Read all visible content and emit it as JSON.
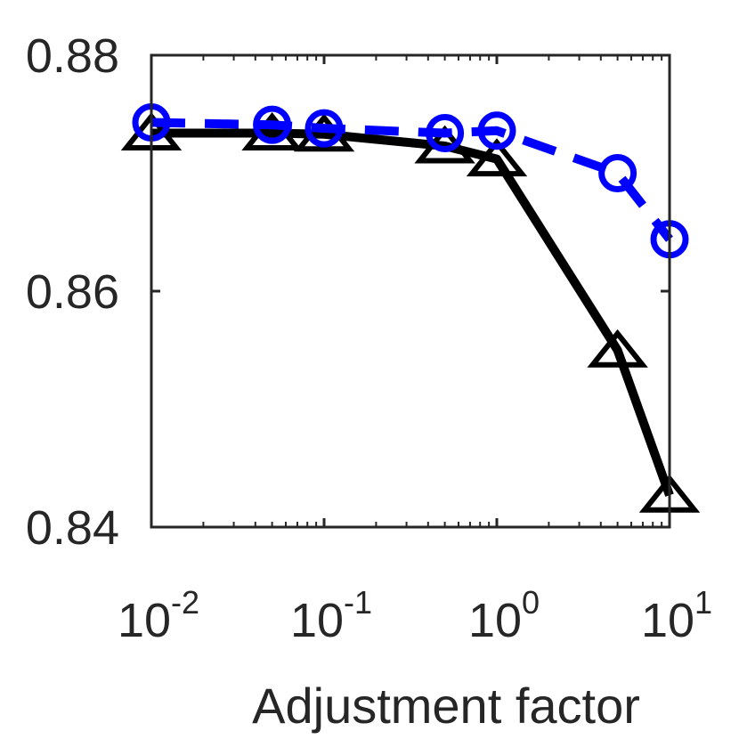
{
  "chart_data": {
    "type": "line",
    "title": "",
    "xlabel": "Adjustment factor",
    "ylabel": "",
    "xscale": "log",
    "xlim": [
      0.01,
      10
    ],
    "ylim": [
      0.84,
      0.88
    ],
    "x_ticks": [
      {
        "base": "10",
        "exp": "-2",
        "value": 0.01
      },
      {
        "base": "10",
        "exp": "-1",
        "value": 0.1
      },
      {
        "base": "10",
        "exp": "0",
        "value": 1
      },
      {
        "base": "10",
        "exp": "1",
        "value": 10
      }
    ],
    "y_ticks": [
      "0.84",
      "0.86",
      "0.88"
    ],
    "grid": false,
    "series": [
      {
        "marker": "triangle",
        "line_style": "solid",
        "color": "#000000",
        "x": [
          0.01,
          0.05,
          0.1,
          0.5,
          1,
          5,
          10
        ],
        "y": [
          0.8734,
          0.8734,
          0.8733,
          0.8723,
          0.8712,
          0.855,
          0.8427
        ]
      },
      {
        "marker": "circle",
        "line_style": "dashed",
        "color": "#0000ff",
        "x": [
          0.01,
          0.05,
          0.1,
          0.5,
          1,
          5,
          10
        ],
        "y": [
          0.8743,
          0.8741,
          0.8738,
          0.8734,
          0.8736,
          0.87,
          0.8644
        ]
      }
    ]
  }
}
